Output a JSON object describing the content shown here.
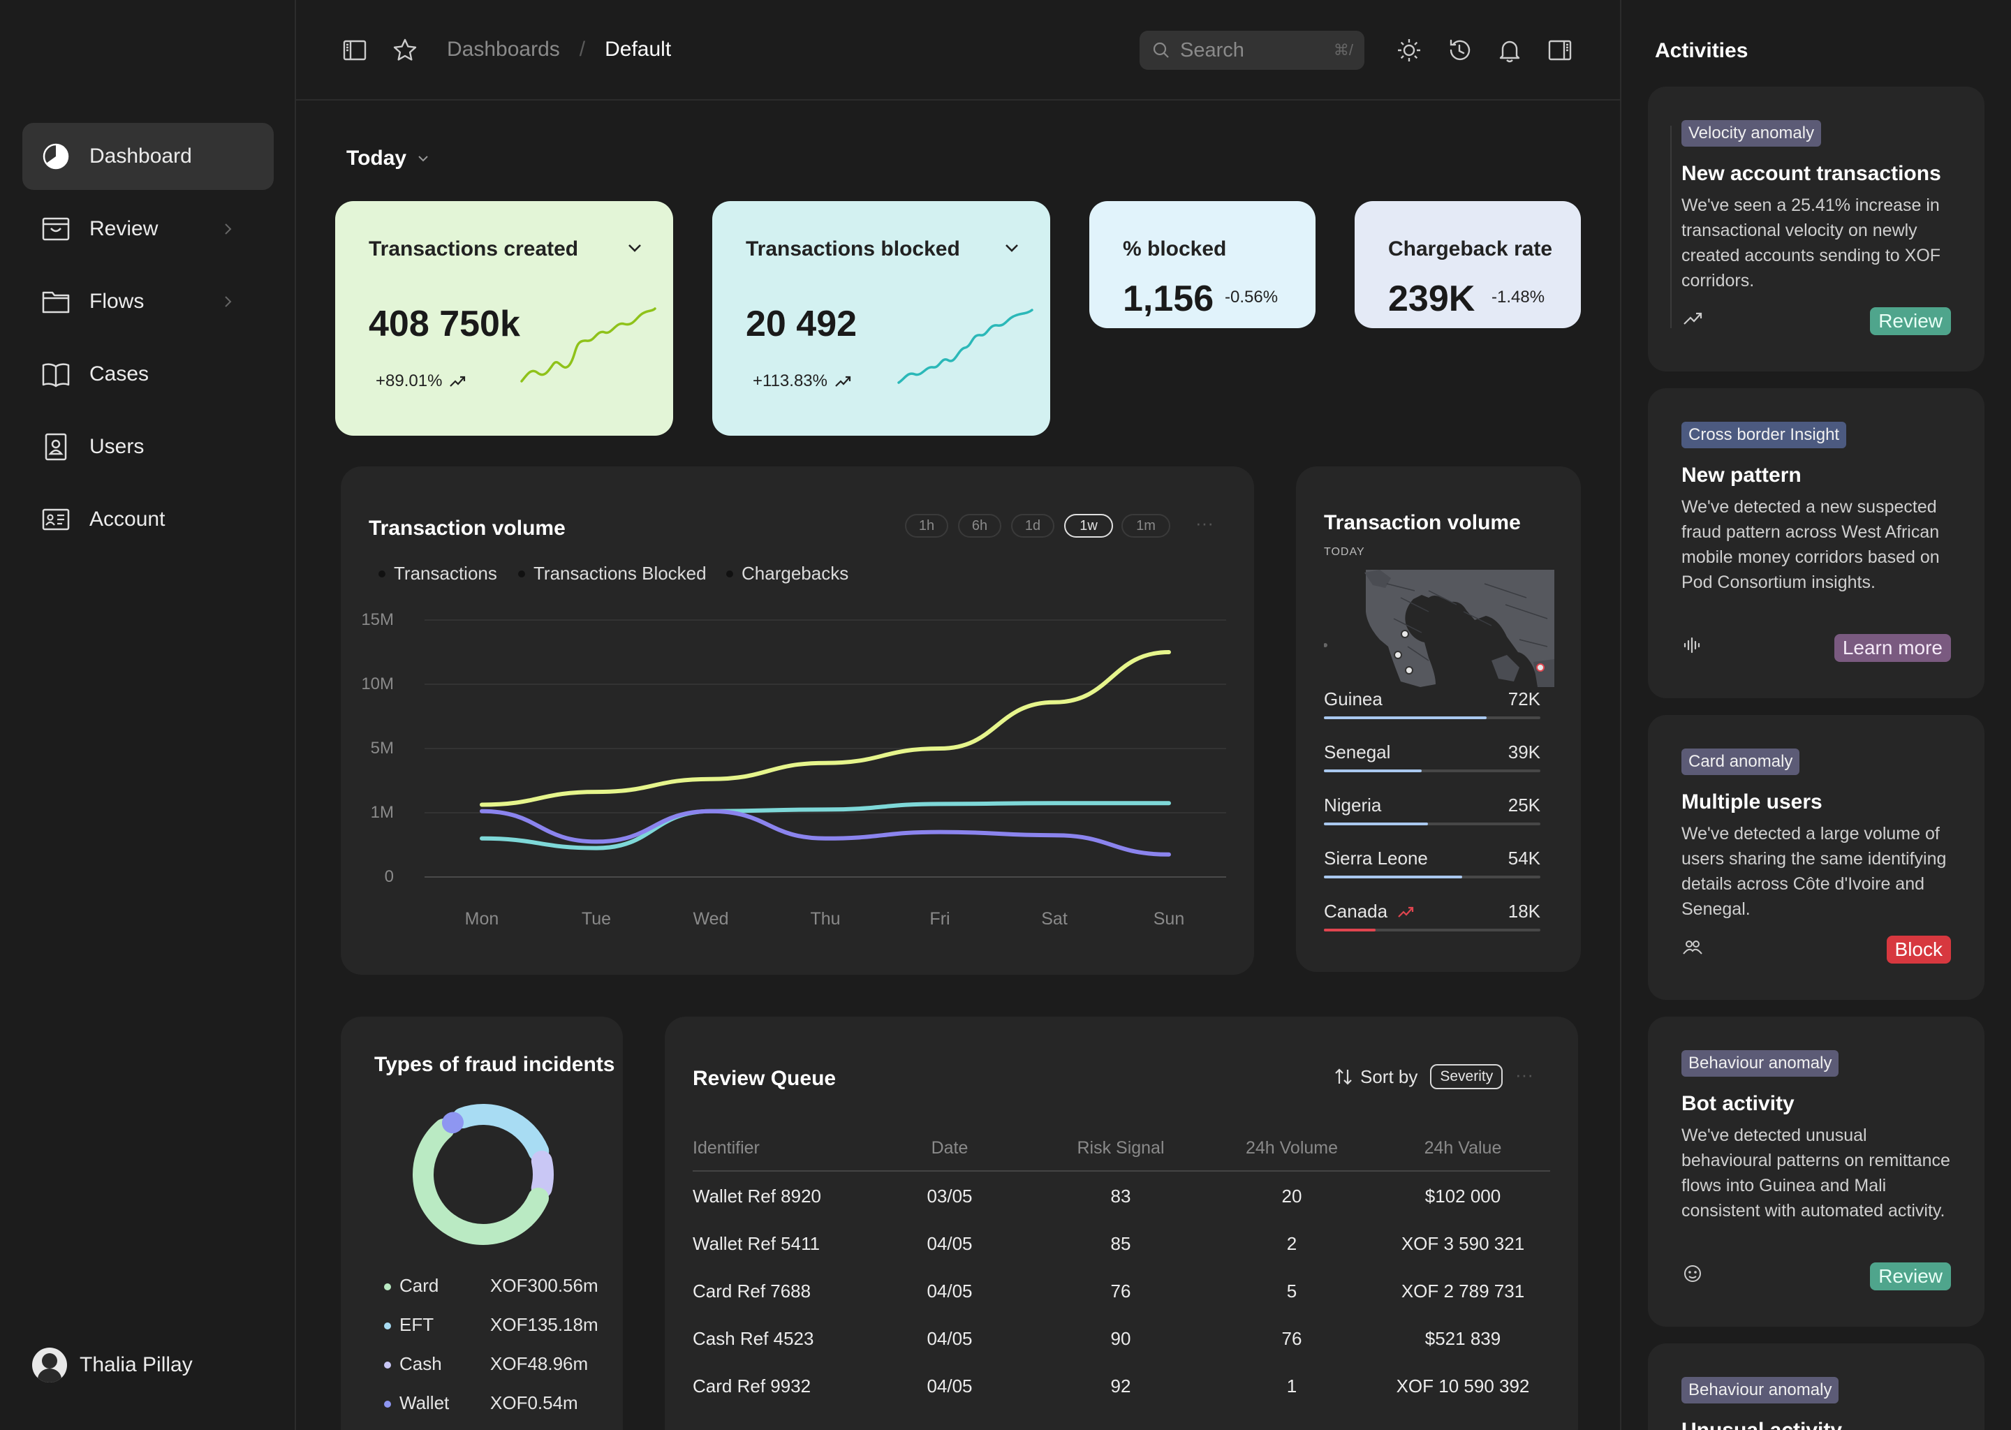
{
  "sidebar": {
    "items": [
      {
        "label": "Dashboard",
        "icon": "pie-chart-icon"
      },
      {
        "label": "Review",
        "icon": "inbox-icon"
      },
      {
        "label": "Flows",
        "icon": "folder-icon"
      },
      {
        "label": "Cases",
        "icon": "book-open-icon"
      },
      {
        "label": "Users",
        "icon": "user-badge-icon"
      },
      {
        "label": "Account",
        "icon": "id-card-icon"
      }
    ],
    "user": {
      "name": "Thalia Pillay"
    }
  },
  "header": {
    "breadcrumb": {
      "parent": "Dashboards",
      "separator": "/",
      "current": "Default"
    },
    "search": {
      "placeholder": "Search",
      "shortcut": "⌘/"
    }
  },
  "main": {
    "period": "Today",
    "stats": [
      {
        "title": "Transactions created",
        "value": "408 750k",
        "delta": "+89.01%",
        "color": "#e3f5d7"
      },
      {
        "title": "Transactions blocked",
        "value": "20 492",
        "delta": "+113.83%",
        "color": "#d3f1f1"
      },
      {
        "title": "% blocked",
        "value": "1,156",
        "delta": "-0.56%",
        "color": "#e1f3fb"
      },
      {
        "title": "Chargeback rate",
        "value": "239K",
        "delta": "-1.48%",
        "color": "#e4eaf6"
      }
    ],
    "volume": {
      "title": "Transaction volume",
      "ranges": [
        "1h",
        "6h",
        "1d",
        "1w",
        "1m"
      ],
      "active_range": "1w",
      "more": "···"
    },
    "map_panel": {
      "title": "Transaction volume",
      "subtitle": "TODAY",
      "countries": [
        {
          "name": "Guinea",
          "value": "72K",
          "share": 0.75,
          "color": "#a9c8ef"
        },
        {
          "name": "Senegal",
          "value": "39K",
          "share": 0.45,
          "color": "#a9c8ef"
        },
        {
          "name": "Nigeria",
          "value": "25K",
          "share": 0.48,
          "color": "#a9c8ef"
        },
        {
          "name": "Sierra Leone",
          "value": "54K",
          "share": 0.64,
          "color": "#a9c8ef"
        },
        {
          "name": "Canada",
          "value": "18K",
          "share": 0.24,
          "color": "#e0454f",
          "trend_icon": "trend-up-icon"
        }
      ]
    },
    "fraud_types": {
      "title": "Types of fraud incidents",
      "items": [
        {
          "label": "Card",
          "value": "XOF300.56m",
          "color": "#baeac3",
          "share": 0.6
        },
        {
          "label": "EFT",
          "value": "XOF135.18m",
          "color": "#a8dcf3",
          "share": 0.27
        },
        {
          "label": "Cash",
          "value": "XOF48.96m",
          "color": "#c9c7f5",
          "share": 0.1
        },
        {
          "label": "Wallet",
          "value": "XOF0.54m",
          "color": "#8e96f1",
          "share": 0.03
        }
      ]
    },
    "review_queue": {
      "title": "Review Queue",
      "sort_label": "Sort by",
      "sort_value": "Severity",
      "more": "···",
      "columns": [
        "Identifier",
        "Date",
        "Risk Signal",
        "24h Volume",
        "24h Value"
      ],
      "rows": [
        [
          "Wallet Ref 8920",
          "03/05",
          "83",
          "20",
          "$102 000"
        ],
        [
          "Wallet Ref 5411",
          "04/05",
          "85",
          "2",
          "XOF 3 590 321"
        ],
        [
          "Card Ref 7688",
          "04/05",
          "76",
          "5",
          "XOF 2 789 731"
        ],
        [
          "Cash Ref 4523",
          "04/05",
          "90",
          "76",
          "$521 839"
        ],
        [
          "Card Ref 9932",
          "04/05",
          "92",
          "1",
          "XOF 10 590 392"
        ]
      ]
    }
  },
  "chart_data": {
    "type": "line",
    "title": "Transaction volume",
    "categories": [
      "Mon",
      "Tue",
      "Wed",
      "Thu",
      "Fri",
      "Sat",
      "Sun"
    ],
    "y_ticks": [
      "15M",
      "10M",
      "5M",
      "1M",
      "0"
    ],
    "grid": true,
    "legend_position": "top-left",
    "series": [
      {
        "name": "Transactions",
        "color": "#e6f58c",
        "values": [
          1.5,
          2.3,
          3.1,
          4.1,
          5.0,
          8.6,
          12.5
        ]
      },
      {
        "name": "Transactions Blocked",
        "color": "#7ed8d8",
        "values": [
          0.6,
          0.45,
          1.1,
          1.2,
          1.55,
          1.6,
          1.6
        ]
      },
      {
        "name": "Chargebacks",
        "color": "#8b84ee",
        "values": [
          1.1,
          0.55,
          1.1,
          0.6,
          0.7,
          0.65,
          0.35
        ]
      }
    ]
  },
  "activities": {
    "title": "Activities",
    "items": [
      {
        "badge": "Velocity anomaly",
        "badge_color": "#5c5b76",
        "title": "New account transactions",
        "desc": "We've seen a 25.41% increase in transactional velocity on newly created accounts sending to XOF corridors.",
        "icon": "trend-up-icon",
        "action": "Review",
        "action_bg": "#4fa58c",
        "action_fg": "#e8fff6"
      },
      {
        "badge": "Cross border Insight",
        "badge_color": "#4c5a80",
        "title": "New pattern",
        "desc": "We've detected a new suspected fraud pattern across West African mobile money corridors based on Pod Consortium insights.",
        "icon": "audio-wave-icon",
        "action": "Learn more",
        "action_bg": "#7a5a80",
        "action_fg": "#f5eaf8"
      },
      {
        "badge": "Card anomaly",
        "badge_color": "#5c5b76",
        "title": "Multiple users",
        "desc": "We've detected a large volume of users sharing the same identifying details across Côte d'Ivoire and Senegal.",
        "icon": "users-group-icon",
        "action": "Block",
        "action_bg": "#d7383f",
        "action_fg": "#ffffff"
      },
      {
        "badge": "Behaviour anomaly",
        "badge_color": "#5c5b76",
        "title": "Bot activity",
        "desc": "We've detected unusual behavioural patterns on remittance flows into Guinea and Mali consistent with automated activity.",
        "icon": "bot-face-icon",
        "action": "Review",
        "action_bg": "#4fa58c",
        "action_fg": "#e8fff6"
      },
      {
        "badge": "Behaviour anomaly",
        "badge_color": "#5c5b76",
        "title": "Unusual activity"
      }
    ]
  }
}
